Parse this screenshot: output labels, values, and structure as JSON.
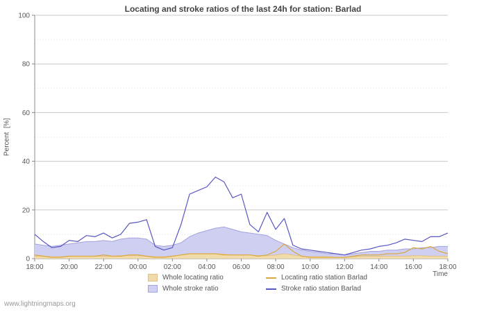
{
  "page": {
    "watermark": "www.lightningmaps.org"
  },
  "chart_data": {
    "type": "line",
    "title": "Locating and stroke ratios of the last 24h for station: Barlad",
    "xlabel": "Time",
    "ylabel": "Percent  [%]",
    "ylim": [
      0,
      100
    ],
    "y_ticks": [
      0,
      20,
      40,
      60,
      80,
      100
    ],
    "y_minor_ticks": [
      10,
      30,
      50,
      70,
      90
    ],
    "x_tick_labels": [
      "18:00",
      "20:00",
      "22:00",
      "00:00",
      "02:00",
      "04:00",
      "06:00",
      "08:00",
      "10:00",
      "12:00",
      "14:00",
      "16:00",
      "18:00"
    ],
    "x_interval_minutes": 30,
    "grid": "on",
    "legend_position": "bottom",
    "series": [
      {
        "name": "Whole locating ratio",
        "type": "area",
        "fill": "#f2dbab",
        "stroke": "#e2c183",
        "values": [
          1,
          1,
          0.8,
          0.8,
          1,
          1,
          1,
          1,
          1,
          1,
          1.2,
          1.2,
          1.2,
          1,
          0.8,
          0.8,
          1,
          1.5,
          2,
          2,
          2,
          2,
          1.8,
          1.5,
          1.5,
          1.5,
          1.2,
          1.2,
          1.5,
          2,
          1.5,
          1,
          0.8,
          0.8,
          0.8,
          0.5,
          0.5,
          0.8,
          1,
          1,
          1,
          1,
          1,
          1,
          1.2,
          1.2,
          1,
          1,
          1
        ]
      },
      {
        "name": "Whole stroke ratio",
        "type": "area",
        "fill": "#cfcff2",
        "stroke": "#a3a3dd",
        "values": [
          6,
          5.5,
          5,
          5.5,
          6,
          6.5,
          7,
          7,
          7.5,
          7,
          8,
          8.5,
          8.5,
          8,
          5.5,
          5,
          5.5,
          6.5,
          9,
          10.5,
          11.5,
          12.5,
          13,
          12,
          11,
          10.5,
          10,
          9.5,
          7.5,
          6,
          4.5,
          3.5,
          3,
          2.5,
          2,
          2,
          1.5,
          2,
          2.5,
          3,
          3,
          3.5,
          3.5,
          4,
          4,
          4.5,
          4.5,
          5,
          5
        ]
      },
      {
        "name": "Locating ratio station Barlad",
        "type": "line",
        "stroke": "#d9a93e",
        "values": [
          1.5,
          1,
          0.5,
          0.5,
          1,
          1,
          1,
          1,
          1.5,
          1,
          1,
          1.5,
          1.5,
          1,
          0.5,
          0.5,
          1,
          1.5,
          2,
          2,
          2,
          2,
          1.5,
          1.5,
          1.5,
          1.5,
          1,
          1.5,
          3,
          6,
          3,
          1,
          0.5,
          0.5,
          0.5,
          0.5,
          0.5,
          1,
          1.5,
          1.5,
          1.5,
          2,
          2,
          2.5,
          4.5,
          4,
          5,
          3,
          2
        ]
      },
      {
        "name": "Stroke ratio station Barlad",
        "type": "line",
        "stroke": "#5656c4",
        "values": [
          10,
          7,
          4.5,
          5,
          7.5,
          7,
          9.5,
          9,
          10.5,
          8.5,
          10,
          14.5,
          15,
          16,
          5,
          3.5,
          4.5,
          14,
          26.5,
          28,
          29.5,
          33.5,
          31.5,
          25,
          26.5,
          14,
          11,
          19,
          12,
          16.5,
          5.5,
          4,
          3.5,
          3,
          2.5,
          2,
          1.5,
          2.5,
          3.5,
          4,
          5,
          5.5,
          6.5,
          8,
          7.5,
          7,
          9,
          9,
          10.5
        ]
      }
    ]
  }
}
